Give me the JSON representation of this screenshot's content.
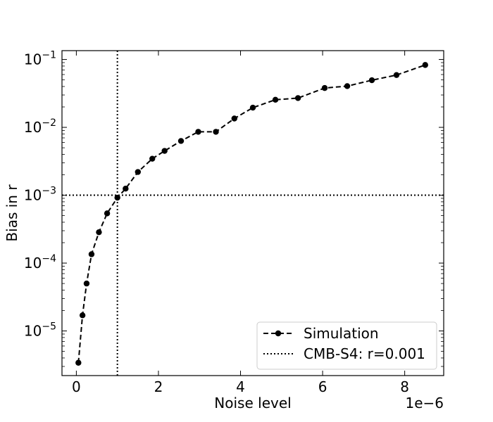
{
  "chart_data": {
    "type": "line",
    "xlabel": "Noise level",
    "ylabel": "Bias in r",
    "x_offset_label": "1e−6",
    "xlim": [
      -0.35,
      8.95
    ],
    "ylim": [
      2.2e-06,
      0.135
    ],
    "yscale": "log",
    "grid": false,
    "legend_position": "lower-right",
    "x_ticks": [
      {
        "value": 0,
        "label": "0"
      },
      {
        "value": 2,
        "label": "2"
      },
      {
        "value": 4,
        "label": "4"
      },
      {
        "value": 6,
        "label": "6"
      },
      {
        "value": 8,
        "label": "8"
      }
    ],
    "y_ticks": [
      {
        "value": 1e-05,
        "base": "10",
        "exp": "−5"
      },
      {
        "value": 0.0001,
        "base": "10",
        "exp": "−4"
      },
      {
        "value": 0.001,
        "base": "10",
        "exp": "−3"
      },
      {
        "value": 0.01,
        "base": "10",
        "exp": "−2"
      },
      {
        "value": 0.1,
        "base": "10",
        "exp": "−1"
      }
    ],
    "series": [
      {
        "name": "Simulation",
        "style": "dashed-with-circles",
        "color": "#000000",
        "points": [
          {
            "x": 0.05,
            "y": 3.4e-06
          },
          {
            "x": 0.15,
            "y": 1.7e-05
          },
          {
            "x": 0.25,
            "y": 5e-05
          },
          {
            "x": 0.37,
            "y": 0.000135
          },
          {
            "x": 0.55,
            "y": 0.000285
          },
          {
            "x": 0.75,
            "y": 0.00054
          },
          {
            "x": 1.0,
            "y": 0.00092
          },
          {
            "x": 1.2,
            "y": 0.00125
          },
          {
            "x": 1.5,
            "y": 0.0022
          },
          {
            "x": 1.85,
            "y": 0.00345
          },
          {
            "x": 2.15,
            "y": 0.0045
          },
          {
            "x": 2.55,
            "y": 0.0063
          },
          {
            "x": 2.97,
            "y": 0.0086
          },
          {
            "x": 3.4,
            "y": 0.0086
          },
          {
            "x": 3.85,
            "y": 0.0135
          },
          {
            "x": 4.3,
            "y": 0.0195
          },
          {
            "x": 4.85,
            "y": 0.0255
          },
          {
            "x": 5.4,
            "y": 0.027
          },
          {
            "x": 6.05,
            "y": 0.038
          },
          {
            "x": 6.6,
            "y": 0.0405
          },
          {
            "x": 7.2,
            "y": 0.0495
          },
          {
            "x": 7.8,
            "y": 0.059
          },
          {
            "x": 8.5,
            "y": 0.083
          }
        ]
      },
      {
        "name": "CMB-S4: r=0.001",
        "style": "dotted",
        "color": "#000000",
        "reference_lines": {
          "y": 0.001,
          "x": 1.0
        }
      }
    ]
  }
}
